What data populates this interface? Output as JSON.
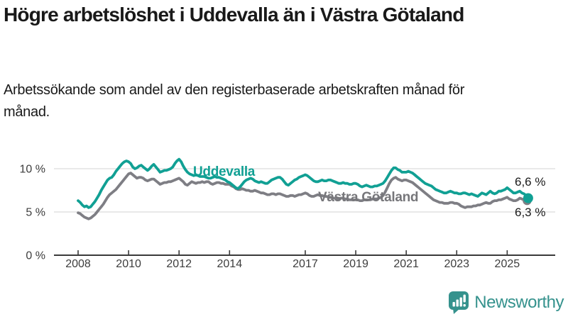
{
  "header": {
    "note": "header text bound from chart_data title/subtitle"
  },
  "chart_data": {
    "type": "line",
    "title": "Högre arbetslöshet i Uddevalla än i Västra Götaland",
    "subtitle": "Arbetssökande som andel av den registerbaserade arbetskraften månad för månad.",
    "unit": "%",
    "grid": "horizontal",
    "x_start": 2008.0,
    "x_step_years": 0.08333,
    "xlim": [
      2007.9,
      2026.1
    ],
    "ylim": [
      0,
      11.5
    ],
    "xticks": [
      {
        "year": 2008,
        "label": "2008"
      },
      {
        "year": 2010,
        "label": "2010"
      },
      {
        "year": 2012,
        "label": "2012"
      },
      {
        "year": 2014,
        "label": "2014"
      },
      {
        "year": 2017,
        "label": "2017"
      },
      {
        "year": 2019,
        "label": "2019"
      },
      {
        "year": 2021,
        "label": "2021"
      },
      {
        "year": 2023,
        "label": "2023"
      },
      {
        "year": 2025,
        "label": "2025"
      }
    ],
    "yticks": [
      {
        "value": 0,
        "label": "0 %"
      },
      {
        "value": 5,
        "label": "5 %"
      },
      {
        "value": 10,
        "label": "10 %"
      }
    ],
    "series": [
      {
        "name": "Uddevalla",
        "color": "#11a094",
        "end_label": "6,6 %",
        "end_value": 6.6,
        "values": [
          6.3,
          6.1,
          5.8,
          5.6,
          5.7,
          5.5,
          5.6,
          5.9,
          6.2,
          6.6,
          7.0,
          7.5,
          7.9,
          8.3,
          8.7,
          8.9,
          9.0,
          9.3,
          9.7,
          10.0,
          10.3,
          10.6,
          10.8,
          10.9,
          10.8,
          10.6,
          10.2,
          10.0,
          10.1,
          10.3,
          10.4,
          10.2,
          10.0,
          9.8,
          10.0,
          10.3,
          10.5,
          10.2,
          9.9,
          9.6,
          9.7,
          9.8,
          9.8,
          9.9,
          10.0,
          10.2,
          10.6,
          10.9,
          11.1,
          10.8,
          10.3,
          9.9,
          9.6,
          9.4,
          9.3,
          9.2,
          9.3,
          9.2,
          9.1,
          9.1,
          9.1,
          9.0,
          8.9,
          8.9,
          9.0,
          9.1,
          9.0,
          9.0,
          8.9,
          8.8,
          8.7,
          8.5,
          8.4,
          8.2,
          8.0,
          7.8,
          7.7,
          7.9,
          8.2,
          8.5,
          8.7,
          8.8,
          8.9,
          8.8,
          8.6,
          8.5,
          8.4,
          8.5,
          8.4,
          8.3,
          8.3,
          8.5,
          8.7,
          8.8,
          8.9,
          9.0,
          9.0,
          8.8,
          8.5,
          8.2,
          8.1,
          8.3,
          8.5,
          8.7,
          8.8,
          9.0,
          9.1,
          9.2,
          9.3,
          9.2,
          9.0,
          8.8,
          8.6,
          8.5,
          8.5,
          8.6,
          8.7,
          8.6,
          8.6,
          8.7,
          8.7,
          8.6,
          8.5,
          8.4,
          8.3,
          8.3,
          8.4,
          8.3,
          8.3,
          8.2,
          8.2,
          8.3,
          8.3,
          8.2,
          8.0,
          7.9,
          8.0,
          8.1,
          8.0,
          7.9,
          7.9,
          8.0,
          8.0,
          8.1,
          8.2,
          8.3,
          8.6,
          9.0,
          9.4,
          9.8,
          10.1,
          10.1,
          9.9,
          9.8,
          9.6,
          9.6,
          9.6,
          9.7,
          9.6,
          9.5,
          9.3,
          9.1,
          8.9,
          8.7,
          8.5,
          8.3,
          8.2,
          8.1,
          8.0,
          7.8,
          7.6,
          7.5,
          7.4,
          7.3,
          7.2,
          7.2,
          7.3,
          7.4,
          7.3,
          7.2,
          7.2,
          7.1,
          7.1,
          7.2,
          7.2,
          7.1,
          7.0,
          7.1,
          7.0,
          6.9,
          6.8,
          7.0,
          7.2,
          7.1,
          7.0,
          7.2,
          7.4,
          7.2,
          7.1,
          7.2,
          7.4,
          7.4,
          7.5,
          7.6,
          7.8,
          7.6,
          7.4,
          7.2,
          7.2,
          7.3,
          7.4,
          7.2,
          7.1,
          6.9,
          6.6
        ]
      },
      {
        "name": "Västra Götaland",
        "color": "#7e7e84",
        "end_label": "6,3 %",
        "end_value": 6.3,
        "values": [
          4.9,
          4.8,
          4.6,
          4.4,
          4.3,
          4.2,
          4.3,
          4.5,
          4.7,
          5.0,
          5.3,
          5.6,
          5.9,
          6.3,
          6.7,
          7.0,
          7.2,
          7.4,
          7.6,
          7.9,
          8.2,
          8.5,
          8.8,
          9.1,
          9.4,
          9.5,
          9.3,
          9.1,
          8.9,
          9.0,
          9.0,
          8.9,
          8.7,
          8.6,
          8.7,
          8.8,
          8.8,
          8.6,
          8.4,
          8.2,
          8.3,
          8.4,
          8.4,
          8.5,
          8.5,
          8.6,
          8.7,
          8.8,
          8.9,
          8.7,
          8.5,
          8.2,
          8.1,
          8.3,
          8.5,
          8.4,
          8.3,
          8.4,
          8.4,
          8.5,
          8.4,
          8.5,
          8.5,
          8.3,
          8.2,
          8.3,
          8.4,
          8.4,
          8.3,
          8.3,
          8.2,
          8.2,
          8.2,
          8.0,
          7.9,
          7.7,
          7.6,
          7.6,
          7.7,
          7.6,
          7.5,
          7.5,
          7.4,
          7.4,
          7.5,
          7.4,
          7.3,
          7.2,
          7.2,
          7.1,
          7.0,
          7.0,
          7.1,
          7.1,
          7.0,
          7.1,
          7.1,
          7.0,
          6.9,
          6.8,
          6.8,
          6.9,
          6.9,
          6.8,
          6.9,
          7.0,
          7.0,
          7.1,
          7.2,
          7.1,
          6.9,
          6.8,
          6.8,
          6.9,
          7.0,
          6.9,
          6.9,
          6.8,
          6.8,
          6.7,
          6.7,
          6.6,
          6.6,
          6.5,
          6.5,
          6.6,
          6.6,
          6.5,
          6.5,
          6.4,
          6.4,
          6.4,
          6.4,
          6.4,
          6.3,
          6.3,
          6.4,
          6.4,
          6.4,
          6.4,
          6.5,
          6.5,
          6.5,
          6.6,
          6.7,
          6.9,
          7.3,
          7.8,
          8.3,
          8.7,
          8.9,
          9.0,
          8.8,
          8.7,
          8.6,
          8.7,
          8.7,
          8.6,
          8.5,
          8.4,
          8.2,
          8.0,
          7.8,
          7.6,
          7.4,
          7.2,
          7.0,
          6.8,
          6.6,
          6.4,
          6.3,
          6.2,
          6.1,
          6.1,
          6.0,
          6.0,
          6.0,
          6.1,
          6.1,
          6.0,
          6.0,
          5.9,
          5.7,
          5.6,
          5.5,
          5.6,
          5.6,
          5.6,
          5.7,
          5.7,
          5.8,
          5.8,
          5.9,
          6.0,
          6.1,
          6.0,
          6.0,
          6.2,
          6.3,
          6.3,
          6.4,
          6.4,
          6.5,
          6.6,
          6.7,
          6.5,
          6.4,
          6.3,
          6.3,
          6.4,
          6.6,
          6.5,
          6.4,
          6.3,
          6.3
        ]
      }
    ]
  },
  "branding": {
    "logo_text": "Newsworthy",
    "logo_color": "#35928d",
    "icon": "bar-chart-speech-bubble-icon"
  }
}
